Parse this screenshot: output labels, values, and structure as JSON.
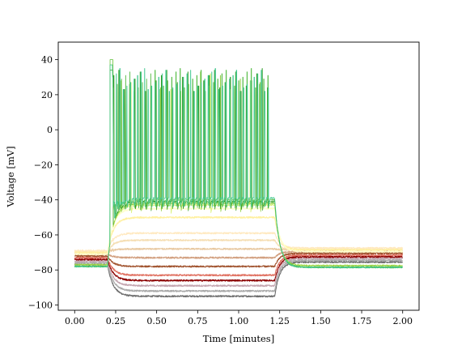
{
  "chart_data": {
    "type": "line",
    "title": "",
    "xlabel": "Time [minutes]",
    "ylabel": "Voltage [mV]",
    "xlim": [
      -0.1,
      2.1
    ],
    "ylim": [
      -103,
      50
    ],
    "xticks": [
      0.0,
      0.25,
      0.5,
      0.75,
      1.0,
      1.25,
      1.5,
      1.75,
      2.0
    ],
    "xtick_labels": [
      "0.00",
      "0.25",
      "0.50",
      "0.75",
      "1.00",
      "1.25",
      "1.50",
      "1.75",
      "2.00"
    ],
    "yticks": [
      -100,
      -80,
      -60,
      -40,
      -20,
      0,
      20,
      40
    ],
    "ytick_labels": [
      "−100",
      "−80",
      "−60",
      "−40",
      "−20",
      "0",
      "20",
      "40"
    ],
    "grid": false,
    "stimulus_window": [
      0.2,
      1.22
    ],
    "series": [
      {
        "color": "#6e6e6e",
        "baseline": -77,
        "stim_level": -95
      },
      {
        "color": "#a8a8a8",
        "baseline": -76,
        "stim_level": -92
      },
      {
        "color": "#c4a6b0",
        "baseline": -75,
        "stim_level": -89
      },
      {
        "color": "#8b0000",
        "baseline": -74,
        "stim_level": -86
      },
      {
        "color": "#e07060",
        "baseline": -73,
        "stim_level": -83
      },
      {
        "color": "#a0522d",
        "baseline": -72,
        "stim_level": -78
      },
      {
        "color": "#d2a080",
        "baseline": -71,
        "stim_level": -73
      },
      {
        "color": "#e8c8a0",
        "baseline": -70,
        "stim_level": -68
      },
      {
        "color": "#f5deb3",
        "baseline": -70,
        "stim_level": -63
      },
      {
        "color": "#ffe9c0",
        "baseline": -69,
        "stim_level": -59
      },
      {
        "color": "#fff0a0",
        "baseline": -70,
        "stim_level": -50
      },
      {
        "color": "#ffffcc",
        "baseline": -71,
        "stim_level": -45
      },
      {
        "color": "#d8f070",
        "baseline": -77,
        "stim_level": -43,
        "spikes": 4
      },
      {
        "color": "#90d040",
        "baseline": -77,
        "stim_level": -42,
        "spikes": 8
      },
      {
        "color": "#2e9a20",
        "baseline": -78,
        "stim_level": -41,
        "spikes": 30
      },
      {
        "color": "#60c050",
        "baseline": -78,
        "stim_level": -40,
        "spikes": 38
      },
      {
        "color": "#40c890",
        "baseline": -78,
        "stim_level": -39,
        "spikes": 45
      }
    ]
  }
}
